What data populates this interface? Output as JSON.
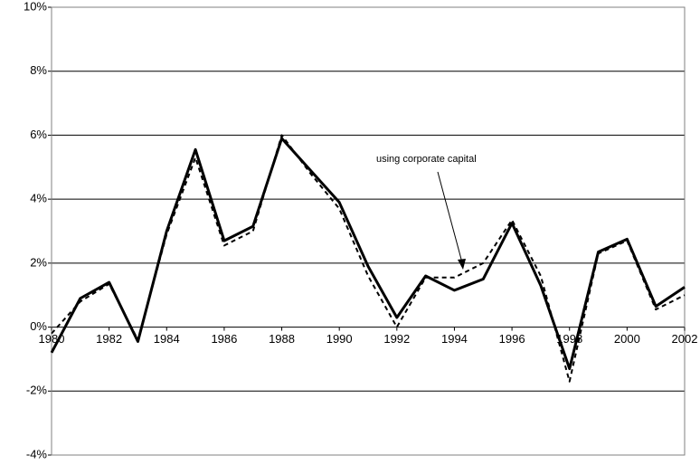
{
  "chart_data": {
    "type": "line",
    "x": [
      1980,
      1981,
      1982,
      1983,
      1984,
      1985,
      1986,
      1987,
      1988,
      1989,
      1990,
      1991,
      1992,
      1993,
      1994,
      1995,
      1996,
      1997,
      1998,
      1999,
      2000,
      2001,
      2002
    ],
    "series": [
      {
        "color": "#000000",
        "style": "solid",
        "values": [
          -0.8,
          0.9,
          1.4,
          -0.45,
          3.0,
          5.55,
          2.7,
          3.15,
          5.9,
          4.9,
          3.9,
          1.9,
          0.3,
          1.6,
          1.15,
          1.5,
          3.25,
          1.3,
          -1.3,
          2.35,
          2.75,
          0.65,
          1.25
        ]
      },
      {
        "color": "#000000",
        "style": "dashed",
        "values": [
          -0.2,
          0.8,
          1.35,
          -0.4,
          2.9,
          5.3,
          2.55,
          3.0,
          6.0,
          4.8,
          3.7,
          1.6,
          0.0,
          1.55,
          1.55,
          2.0,
          3.35,
          1.6,
          -1.7,
          2.3,
          2.7,
          0.55,
          1.0
        ]
      }
    ],
    "annotations": [
      {
        "text": "using corporate capital"
      }
    ],
    "xlim": [
      1980,
      2002
    ],
    "xticks": [
      1980,
      1982,
      1984,
      1986,
      1988,
      1990,
      1992,
      1994,
      1996,
      1998,
      2000,
      2002
    ],
    "ylim": [
      -4,
      10
    ],
    "yticks": [
      {
        "value": -4,
        "label": "-4%"
      },
      {
        "value": -2,
        "label": "-2%"
      },
      {
        "value": 0,
        "label": "0%"
      },
      {
        "value": 2,
        "label": "2%"
      },
      {
        "value": 4,
        "label": "4%"
      },
      {
        "value": 6,
        "label": "6%"
      },
      {
        "value": 8,
        "label": "8%"
      },
      {
        "value": 10,
        "label": "10%"
      }
    ],
    "grid": true
  }
}
